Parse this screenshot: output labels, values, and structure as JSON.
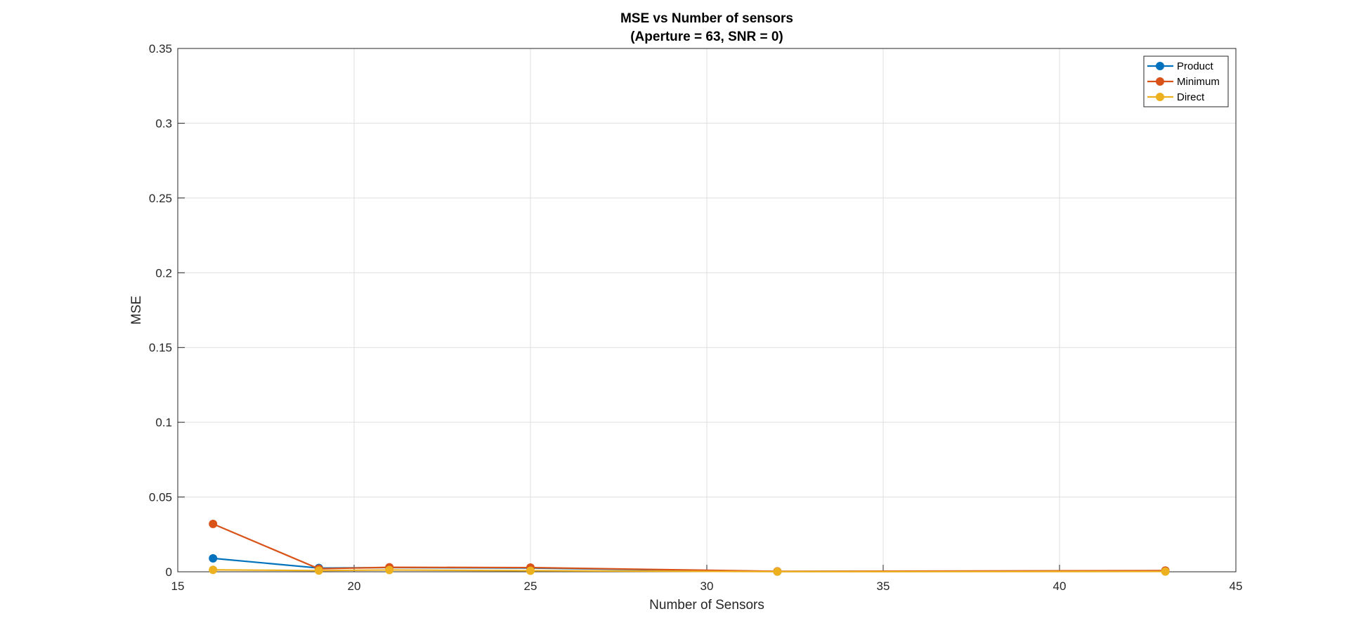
{
  "chart_data": {
    "type": "line",
    "title": "MSE vs Number of sensors",
    "subtitle": "(Aperture = 63, SNR = 0)",
    "xlabel": "Number of Sensors",
    "ylabel": "MSE",
    "xlim": [
      15,
      45
    ],
    "ylim": [
      0,
      0.35
    ],
    "xticks": [
      15,
      20,
      25,
      30,
      35,
      40,
      45
    ],
    "xtick_labels": [
      "15",
      "20",
      "25",
      "30",
      "35",
      "40",
      "45"
    ],
    "yticks": [
      0,
      0.05,
      0.1,
      0.15,
      0.2,
      0.25,
      0.3,
      0.35
    ],
    "ytick_labels": [
      "0",
      "0.05",
      "0.1",
      "0.15",
      "0.2",
      "0.25",
      "0.3",
      "0.35"
    ],
    "grid": true,
    "legend_position": "top-right",
    "x": [
      16,
      19,
      21,
      25,
      32,
      43
    ],
    "series": [
      {
        "name": "Product",
        "color": "#0072BD",
        "values": [
          0.009,
          0.0025,
          0.0028,
          0.0025,
          0.0002,
          0.0006
        ]
      },
      {
        "name": "Minimum",
        "color": "#D95319",
        "values": [
          0.032,
          0.002,
          0.003,
          0.0028,
          0.0003,
          0.0008
        ]
      },
      {
        "name": "Direct",
        "color": "#EDB120",
        "values": [
          0.0013,
          0.0008,
          0.0012,
          0.0007,
          0.0001,
          0.0002
        ]
      }
    ]
  }
}
